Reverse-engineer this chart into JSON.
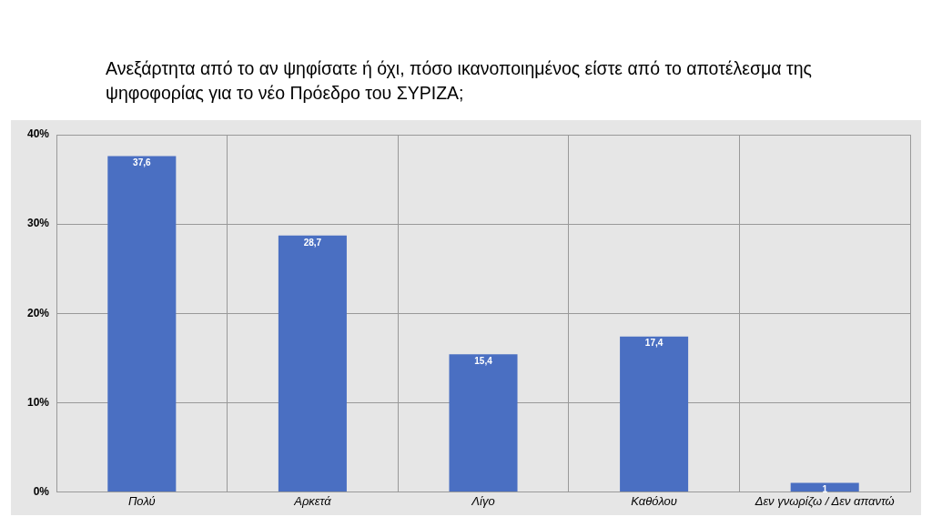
{
  "chart_data": {
    "type": "bar",
    "title": "Ανεξάρτητα από το αν ψηφίσατε ή όχι, πόσο ικανοποιημένος είστε από το αποτέλεσμα της ψηφοφορίας για το νέο Πρόεδρο του ΣΥΡΙΖΑ;",
    "categories": [
      "Πολύ",
      "Αρκετά",
      "Λίγο",
      "Καθόλου",
      "Δεν γνωρίζω / Δεν απαντώ"
    ],
    "values": [
      37.6,
      28.7,
      15.4,
      17.4,
      1
    ],
    "value_labels": [
      "37,6",
      "28,7",
      "15,4",
      "17,4",
      "1"
    ],
    "color": "#4a6fc2",
    "ylim": [
      0,
      40
    ],
    "yticks": [
      {
        "value": 0,
        "label": "0%"
      },
      {
        "value": 10,
        "label": "10%"
      },
      {
        "value": 20,
        "label": "20%"
      },
      {
        "value": 30,
        "label": "30%"
      },
      {
        "value": 40,
        "label": "40%"
      }
    ],
    "grid": true,
    "legend": false
  }
}
